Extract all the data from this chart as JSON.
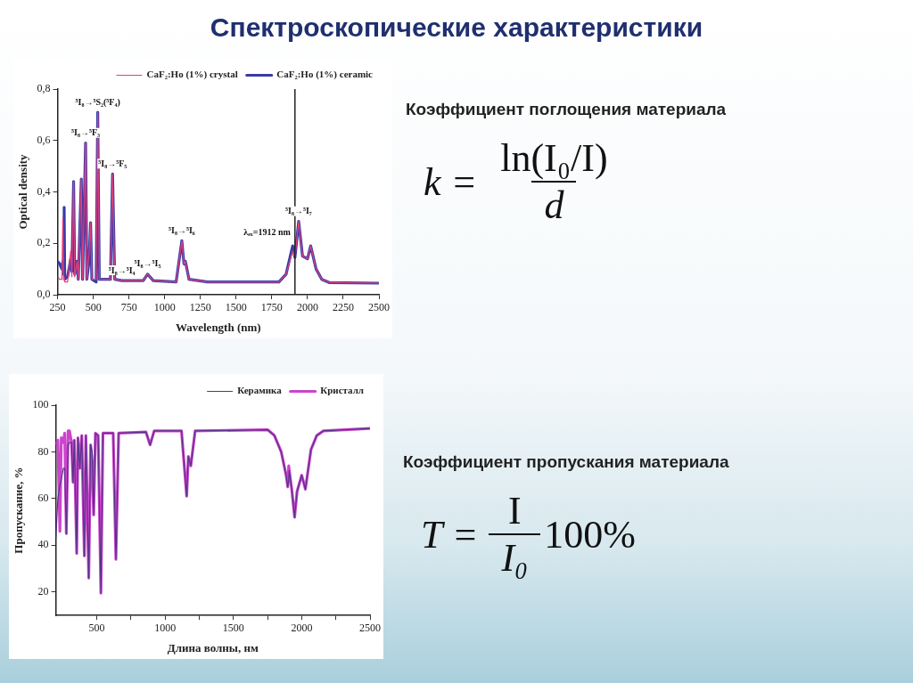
{
  "chart_data": [
    {
      "type": "other",
      "title": "Спектроскопические характеристики"
    },
    {
      "type": "line",
      "xlabel": "Wavelength (nm)",
      "ylabel": "Optical density",
      "legend": "top right",
      "marker": "none",
      "grid": false,
      "x": [
        250,
        265,
        280,
        287,
        292,
        296,
        300,
        320,
        342,
        350,
        362,
        370,
        387,
        395,
        416,
        425,
        446,
        455,
        470,
        481,
        490,
        520,
        531,
        542,
        620,
        635,
        650,
        700,
        850,
        880,
        920,
        1080,
        1120,
        1135,
        1145,
        1170,
        1300,
        1800,
        1850,
        1896,
        1912,
        1938,
        1965,
        2000,
        2022,
        2060,
        2100,
        2155,
        2500
      ],
      "series": [
        {
          "name": "CaF₂:Ho (1%) ceramic",
          "color": "#3a3aa8",
          "values": [
            0.13,
            0.12,
            0.1,
            0.13,
            0.08,
            0.34,
            0.06,
            0.07,
            0.14,
            0.09,
            0.44,
            0.08,
            0.13,
            0.06,
            0.45,
            0.06,
            0.59,
            0.06,
            0.13,
            0.28,
            0.06,
            0.05,
            0.71,
            0.06,
            0.06,
            0.47,
            0.06,
            0.055,
            0.055,
            0.08,
            0.055,
            0.05,
            0.21,
            0.12,
            0.13,
            0.06,
            0.05,
            0.05,
            0.08,
            0.19,
            0.145,
            0.285,
            0.15,
            0.14,
            0.19,
            0.1,
            0.06,
            0.047,
            0.045
          ]
        },
        {
          "name": "CaF₂:Ho (1%) crystal",
          "color": "#e0407a",
          "values": [
            0.07,
            0.06,
            0.06,
            0.3,
            0.06,
            0.07,
            0.05,
            0.05,
            0.17,
            0.07,
            0.44,
            0.07,
            0.13,
            0.06,
            0.45,
            0.06,
            0.59,
            0.06,
            0.16,
            0.28,
            0.06,
            0.06,
            0.71,
            0.06,
            0.06,
            0.47,
            0.06,
            0.055,
            0.055,
            0.08,
            0.055,
            0.05,
            0.21,
            0.12,
            0.13,
            0.06,
            0.05,
            0.05,
            0.08,
            0.17,
            0.145,
            0.285,
            0.15,
            0.14,
            0.19,
            0.1,
            0.06,
            0.047,
            0.045
          ]
        }
      ],
      "xlim": [
        250,
        2500
      ],
      "xticks": [
        250,
        500,
        750,
        1000,
        1250,
        1500,
        1750,
        2000,
        2250,
        2500
      ],
      "ylim": [
        0,
        0.8
      ],
      "yticks": [
        {
          "value": 0,
          "label": "0,0"
        },
        {
          "value": 0.2,
          "label": "0,2"
        },
        {
          "value": 0.4,
          "label": "0,4"
        },
        {
          "value": 0.6,
          "label": "0,6"
        },
        {
          "value": 0.8,
          "label": "0,8"
        }
      ],
      "ref_lines": [
        {
          "axis": "x",
          "value": 1912,
          "label": "λₑₓ=1912 nm",
          "color": "#222222"
        }
      ],
      "annotations": [
        {
          "text": "⁵I₈→⁵S₂(⁵F₄)",
          "x": 531,
          "y": 0.71
        },
        {
          "text": "⁵I₈→⁵F₃",
          "x": 446,
          "y": 0.59
        },
        {
          "text": "⁵I₈→⁵F₅",
          "x": 635,
          "y": 0.47
        },
        {
          "text": "⁵I₈→⁵I₄",
          "x": 700,
          "y": 0.055
        },
        {
          "text": "⁵I₈→⁵I₅",
          "x": 880,
          "y": 0.08
        },
        {
          "text": "⁵I₈→⁵I₆",
          "x": 1120,
          "y": 0.21
        },
        {
          "text": "⁵I₈→⁵I₇",
          "x": 1938,
          "y": 0.285
        }
      ]
    },
    {
      "type": "other",
      "title": "Коэффициент поглощения материала",
      "annotations": [
        "k =",
        "ln(I₀/I)",
        "d"
      ]
    },
    {
      "type": "line",
      "xlabel": "Длина волны, нм",
      "ylabel": "Пропускание, %",
      "legend": "top right",
      "marker": "none",
      "grid": false,
      "x": [
        200,
        215,
        230,
        240,
        255,
        265,
        277,
        290,
        300,
        315,
        326,
        335,
        353,
        362,
        376,
        390,
        409,
        420,
        441,
        455,
        466,
        477,
        490,
        510,
        530,
        545,
        620,
        640,
        660,
        860,
        890,
        920,
        1120,
        1158,
        1170,
        1188,
        1220,
        1750,
        1800,
        1850,
        1886,
        1898,
        1905,
        1909,
        1927,
        1948,
        1966,
        2000,
        2027,
        2068,
        2110,
        2159,
        2500
      ],
      "series": [
        {
          "name": "Кристалл",
          "color": "#cc44cc",
          "values": [
            83,
            85,
            46,
            86,
            84,
            88,
            45,
            89,
            89,
            84,
            67,
            85,
            36.5,
            86,
            73,
            87,
            35.5,
            87,
            26,
            83,
            75,
            53,
            88,
            87,
            19.5,
            88,
            88,
            34,
            88,
            88.5,
            83,
            89,
            89,
            61,
            78,
            74,
            89,
            89.5,
            87,
            80,
            70,
            65,
            74,
            72,
            64,
            52,
            63,
            70,
            64,
            81,
            87,
            89,
            90
          ]
        },
        {
          "name": "Керамика",
          "color": "#553388",
          "values": [
            43,
            60,
            66,
            68,
            73,
            73,
            45,
            83,
            84,
            84,
            67,
            85,
            36.5,
            86,
            73,
            87,
            35.5,
            87,
            26,
            83,
            80,
            53,
            88,
            87,
            19.5,
            88,
            88,
            34,
            88,
            88.5,
            83,
            89,
            89,
            61,
            78,
            74,
            89,
            89.5,
            87,
            80,
            70,
            65,
            68,
            72,
            64,
            52,
            63,
            70,
            64,
            81,
            87,
            89,
            90
          ]
        }
      ],
      "xlim": [
        200,
        2500
      ],
      "xticks": [
        500,
        {
          "value": 750,
          "label": null
        },
        1000,
        {
          "value": 1250,
          "label": null
        },
        1500,
        {
          "value": 1750,
          "label": null
        },
        2000,
        {
          "value": 2250,
          "label": null
        },
        2500
      ],
      "ylim": [
        10,
        100
      ],
      "yticks": [
        20,
        40,
        60,
        80,
        100
      ]
    },
    {
      "type": "other",
      "title": "Коэффициент пропускания материала",
      "annotations": [
        "T =",
        "I",
        "I₀",
        "100%"
      ]
    }
  ]
}
